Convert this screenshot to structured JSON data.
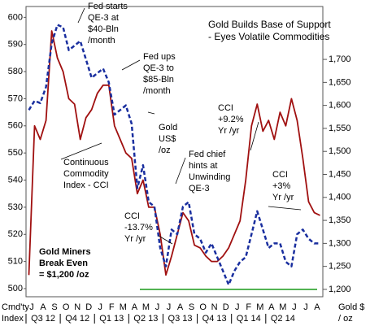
{
  "chart_data": {
    "type": "line",
    "title_lines": [
      "Gold Builds Base of Support",
      "- Eyes Volatile Commodities"
    ],
    "categories": [
      "J",
      null,
      "A",
      null,
      "S",
      null,
      "O",
      null,
      "N",
      null,
      "D",
      null,
      "J",
      null,
      "F",
      null,
      "M",
      null,
      "A",
      null,
      "M",
      null,
      "J",
      null,
      "J",
      null,
      "A",
      null,
      "S",
      null,
      "O",
      null,
      "N",
      null,
      "D",
      null,
      "J",
      null,
      "F",
      null,
      "M",
      null,
      "A",
      null,
      "M",
      null,
      "J",
      null,
      "J",
      null,
      "A",
      null
    ],
    "quarters": [
      "Q3 12",
      "Q4 12",
      "Q1 13",
      "Q2 13",
      "Q3 13",
      "Q4 13",
      "Q1 14",
      "Q2 14"
    ],
    "y_label_lines": [
      "Cmd'ty",
      "Index"
    ],
    "y2_label_lines": [
      "Gold $",
      "/ oz"
    ],
    "series": [
      {
        "name": "Continuous Commodity Index - CCI",
        "color": "#a01010",
        "dashed": false,
        "values": [
          505,
          560,
          555,
          562,
          595,
          585,
          580,
          570,
          568,
          555,
          563,
          566,
          572,
          575,
          575,
          560,
          555,
          550,
          548,
          535,
          540,
          530,
          530,
          520,
          505,
          512,
          520,
          528,
          525,
          516,
          515,
          512,
          510,
          510,
          512,
          515,
          520,
          525,
          540,
          560,
          568,
          558,
          562,
          555,
          565,
          560,
          570,
          562,
          548,
          532,
          528,
          527
        ]
      },
      {
        "name": "Gold US$ /oz",
        "color": "#1a2f9f",
        "dashed": true,
        "axis": "y2",
        "values": [
          1590,
          1610,
          1605,
          1640,
          1735,
          1775,
          1770,
          1720,
          1730,
          1740,
          1700,
          1660,
          1670,
          1680,
          1650,
          1580,
          1590,
          1600,
          1560,
          1420,
          1470,
          1390,
          1380,
          1290,
          1250,
          1330,
          1320,
          1380,
          1390,
          1320,
          1310,
          1280,
          1300,
          1270,
          1240,
          1210,
          1240,
          1260,
          1270,
          1320,
          1370,
          1330,
          1290,
          1300,
          1300,
          1260,
          1250,
          1320,
          1330,
          1310,
          1300,
          1300
        ]
      }
    ],
    "ylim": [
      497,
      604
    ],
    "yticks": [
      500,
      510,
      520,
      530,
      540,
      550,
      560,
      570,
      580,
      590,
      600
    ],
    "y2lim": [
      1184,
      1815
    ],
    "y2ticks": [
      {
        "value": 1200,
        "label": "1,200"
      },
      {
        "value": 1250,
        "label": "1,250"
      },
      {
        "value": 1300,
        "label": "1,300"
      },
      {
        "value": 1350,
        "label": "1,350"
      },
      {
        "value": 1400,
        "label": "1,400"
      },
      {
        "value": 1450,
        "label": "1,450"
      },
      {
        "value": 1500,
        "label": "1,500"
      },
      {
        "value": 1550,
        "label": "1,550"
      },
      {
        "value": 1600,
        "label": "1,600"
      },
      {
        "value": 1650,
        "label": "1,650"
      },
      {
        "value": 1700,
        "label": "1,700"
      }
    ],
    "breakeven": {
      "value": 1200,
      "color": "#1a9a1a",
      "lines": [
        "Gold Miners",
        "Break Even",
        "= $1,200 /oz"
      ]
    },
    "annotations": [
      {
        "lines": [
          "Fed starts",
          "QE-3 at",
          "$40-Bln",
          "/month"
        ],
        "color": "#000000"
      },
      {
        "lines": [
          "Fed ups",
          "QE-3 to",
          "$85-Bln",
          "/month"
        ],
        "color": "#000000"
      },
      {
        "lines": [
          "Gold",
          "US$",
          "/oz"
        ],
        "color": "#1a2f9f"
      },
      {
        "lines": [
          "Continuous",
          "Commodity",
          "Index - CCI"
        ],
        "color": "#a01010"
      },
      {
        "lines": [
          "Fed chief",
          "hints at",
          "Unwinding",
          "QE-3"
        ],
        "color": "#000000"
      },
      {
        "lines": [
          "CCI",
          "+9.2%",
          "Yr /yr"
        ],
        "color": "#000000"
      },
      {
        "lines": [
          "CCI",
          "+3%",
          "Yr /yr"
        ],
        "color": "#000000"
      },
      {
        "lines": [
          "CCI",
          "-13.7%",
          "Yr /yr"
        ],
        "color": "#000000"
      }
    ]
  }
}
